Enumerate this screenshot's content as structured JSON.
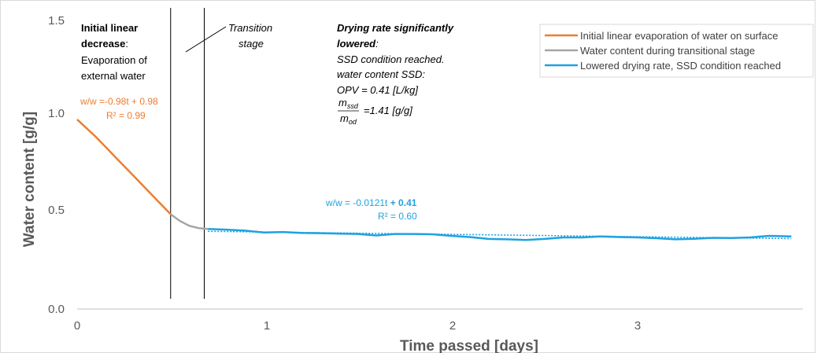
{
  "chart_data": {
    "type": "line",
    "xlabel": "Time passed [days]",
    "ylabel": "Water content  [g/g]",
    "xlim": [
      0,
      3.9
    ],
    "ylim": [
      0,
      1.5
    ],
    "x_ticks": [
      "0",
      "1",
      "2",
      "3"
    ],
    "y_ticks": [
      "0.0",
      "0.5",
      "1.0",
      "1.5"
    ],
    "grid": false,
    "legend_position": "top-right",
    "series": [
      {
        "name": "Initial linear evaporation of water on surface",
        "color": "#ED7D31",
        "points": [
          [
            0,
            0.98
          ],
          [
            0.1,
            0.89
          ],
          [
            0.2,
            0.79
          ],
          [
            0.3,
            0.69
          ],
          [
            0.4,
            0.59
          ],
          [
            0.5,
            0.49
          ]
        ]
      },
      {
        "name": "Water content during transitional stage",
        "color": "#A5A5A5",
        "points": [
          [
            0.5,
            0.49
          ],
          [
            0.55,
            0.455
          ],
          [
            0.6,
            0.43
          ],
          [
            0.65,
            0.418
          ],
          [
            0.7,
            0.414
          ]
        ]
      },
      {
        "name": "Lowered drying rate, SSD condition reached",
        "color": "#1FA2E0",
        "points": [
          [
            0.7,
            0.414
          ],
          [
            0.8,
            0.41
          ],
          [
            0.9,
            0.405
          ],
          [
            1.0,
            0.395
          ],
          [
            1.1,
            0.398
          ],
          [
            1.2,
            0.393
          ],
          [
            1.3,
            0.392
          ],
          [
            1.4,
            0.39
          ],
          [
            1.5,
            0.388
          ],
          [
            1.6,
            0.38
          ],
          [
            1.7,
            0.388
          ],
          [
            1.8,
            0.388
          ],
          [
            1.9,
            0.386
          ],
          [
            2.0,
            0.378
          ],
          [
            2.1,
            0.372
          ],
          [
            2.2,
            0.362
          ],
          [
            2.3,
            0.36
          ],
          [
            2.4,
            0.357
          ],
          [
            2.5,
            0.362
          ],
          [
            2.6,
            0.37
          ],
          [
            2.7,
            0.37
          ],
          [
            2.8,
            0.375
          ],
          [
            2.9,
            0.372
          ],
          [
            3.0,
            0.37
          ],
          [
            3.1,
            0.366
          ],
          [
            3.2,
            0.36
          ],
          [
            3.3,
            0.363
          ],
          [
            3.4,
            0.368
          ],
          [
            3.5,
            0.367
          ],
          [
            3.6,
            0.37
          ],
          [
            3.7,
            0.378
          ],
          [
            3.82,
            0.375
          ]
        ]
      }
    ],
    "trendlines": [
      {
        "series": "Lowered drying rate, SSD condition reached",
        "slope": -0.0121,
        "intercept": 0.41,
        "x_range": [
          0.7,
          3.82
        ],
        "color": "#1FA2E0",
        "style": "dotted"
      }
    ],
    "vertical_lines": [
      0.5,
      0.68
    ],
    "annotations": {
      "stage1": [
        "Initial linear",
        "decrease",
        ":",
        "Evaporation of",
        "external water"
      ],
      "stage2": [
        "Transition",
        "stage"
      ],
      "stage3_bold": [
        "Drying rate significantly",
        "lowered"
      ],
      "stage3_bold_suffix": ":",
      "stage3_body": [
        "SSD condition reached.",
        "water content SSD:",
        "OPV = 0.41 [L/kg]"
      ],
      "frac_num": "m",
      "frac_num_sub": "ssd",
      "frac_den": "m",
      "frac_den_sub": "od",
      "frac_value": "=1.41 [g/g]",
      "eq1": "w/w =-0.98t + 0.98",
      "eq1_r2": "R² = 0.99",
      "eq2_prefix": "w/w = -0.0121t ",
      "eq2_bold": "+ 0.41",
      "eq2_r2": "R² = 0.60"
    }
  }
}
